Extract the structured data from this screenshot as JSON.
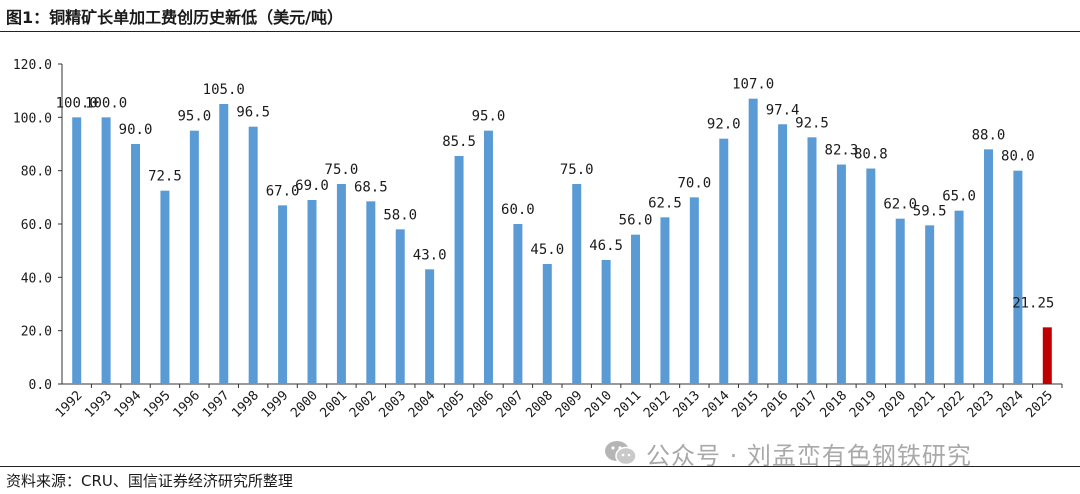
{
  "header": {
    "title": "图1：铜精矿长单加工费创历史新低（美元/吨）"
  },
  "footer": {
    "source": "资料来源：CRU、国信证券经济研究所整理"
  },
  "watermark": {
    "text": "公众号 · 刘孟峦有色钢铁研究",
    "icon": "wechat-icon"
  },
  "colors": {
    "bar": "#5b9bd5",
    "highlight": "#c00000",
    "axis": "#333333"
  },
  "chart_data": {
    "type": "bar",
    "title": "铜精矿长单加工费创历史新低（美元/吨）",
    "xlabel": "",
    "ylabel": "",
    "ylim": [
      0,
      120
    ],
    "yticks": [
      "0.0",
      "20.0",
      "40.0",
      "60.0",
      "80.0",
      "100.0",
      "120.0"
    ],
    "categories": [
      "1992",
      "1993",
      "1994",
      "1995",
      "1996",
      "1997",
      "1998",
      "1999",
      "2000",
      "2001",
      "2002",
      "2003",
      "2004",
      "2005",
      "2006",
      "2007",
      "2008",
      "2009",
      "2010",
      "2011",
      "2012",
      "2013",
      "2014",
      "2015",
      "2016",
      "2017",
      "2018",
      "2019",
      "2020",
      "2021",
      "2022",
      "2023",
      "2024",
      "2025"
    ],
    "values": [
      100.0,
      100.0,
      90.0,
      72.5,
      95.0,
      105.0,
      96.5,
      67.0,
      69.0,
      75.0,
      68.5,
      58.0,
      43.0,
      85.5,
      95.0,
      60.0,
      45.0,
      75.0,
      46.5,
      56.0,
      62.5,
      70.0,
      92.0,
      107.0,
      97.4,
      92.5,
      82.3,
      80.8,
      62.0,
      59.5,
      65.0,
      88.0,
      80.0,
      21.25
    ],
    "labels": [
      "100.0",
      "100.0",
      "90.0",
      "72.5",
      "95.0",
      "105.0",
      "96.5",
      "67.0",
      "69.0",
      "75.0",
      "68.5",
      "58.0",
      "43.0",
      "85.5",
      "95.0",
      "60.0",
      "45.0",
      "75.0",
      "46.5",
      "56.0",
      "62.5",
      "70.0",
      "92.0",
      "107.0",
      "97.4",
      "92.5",
      "82.3",
      "80.8",
      "62.0",
      "59.5",
      "65.0",
      "88.0",
      "80.0",
      "21.25"
    ],
    "highlight_index": 33,
    "legend": "none",
    "grid": false
  }
}
